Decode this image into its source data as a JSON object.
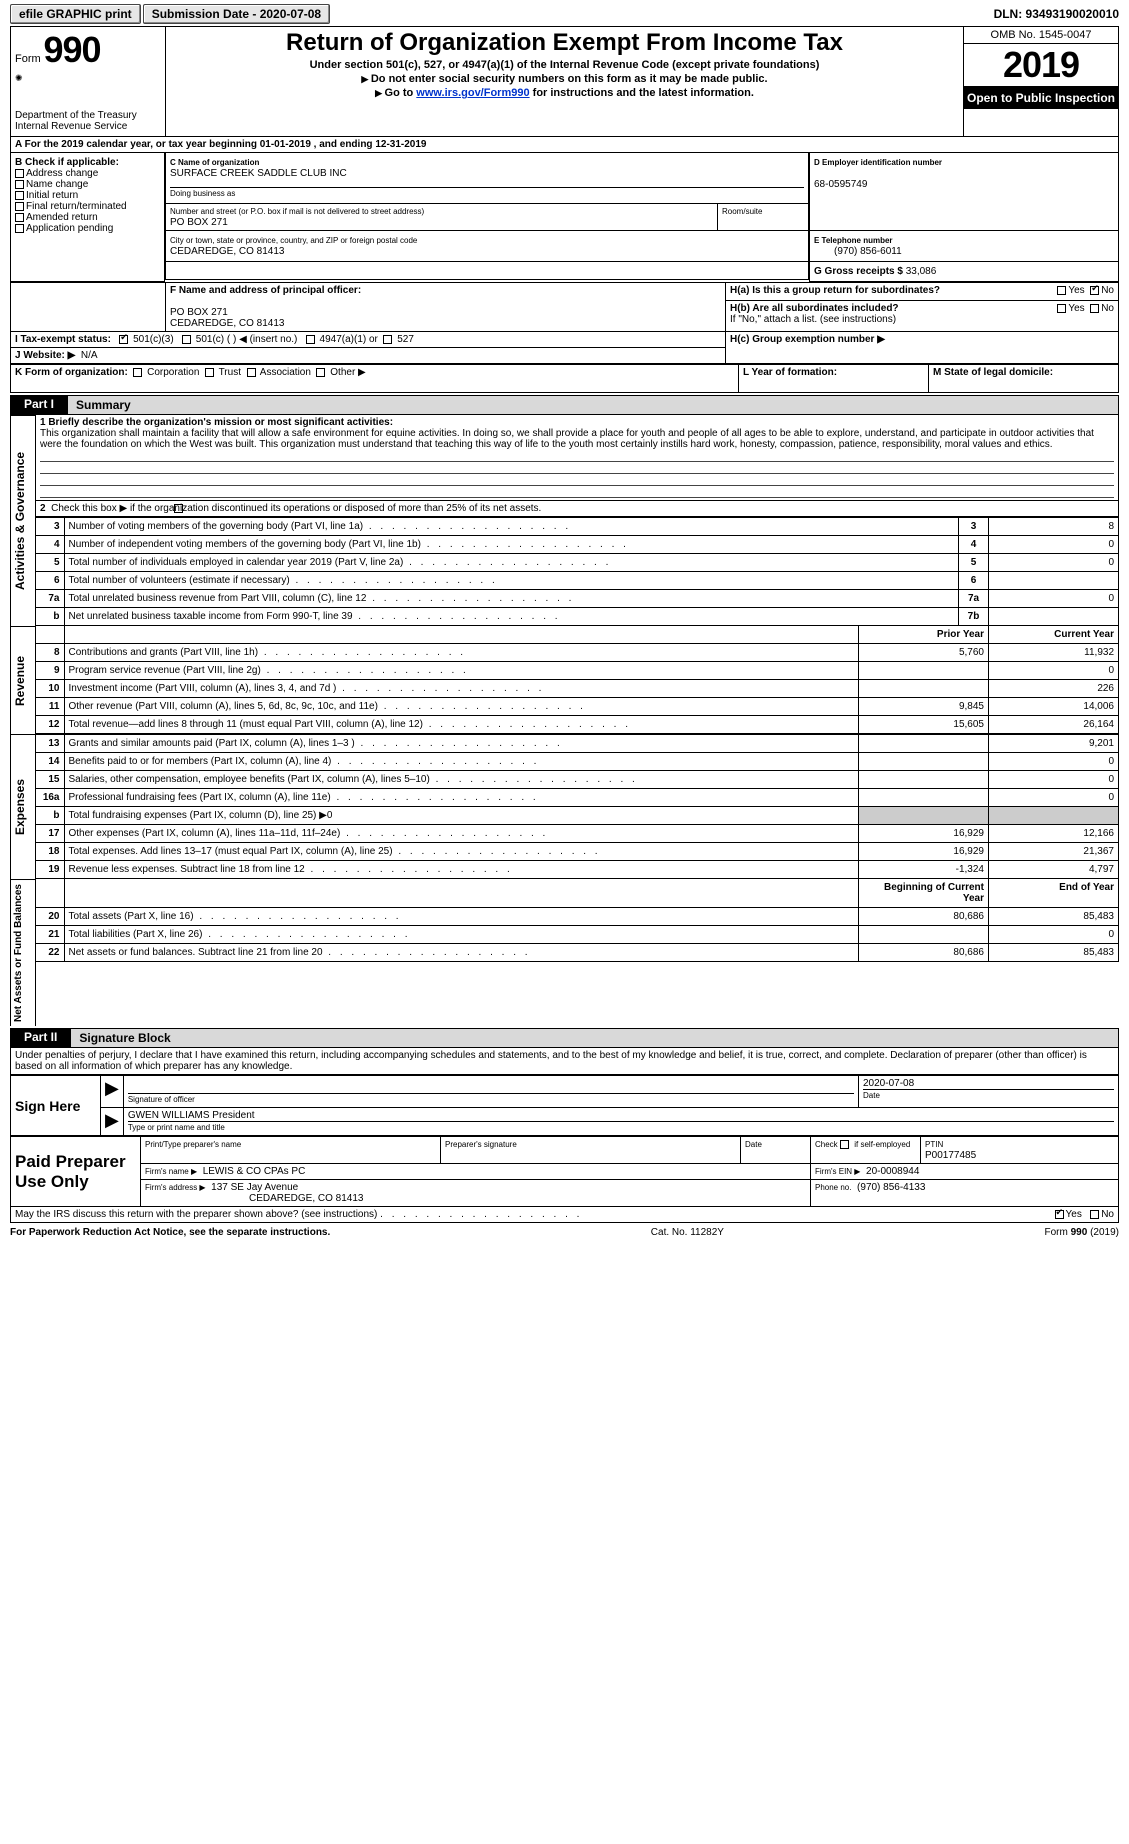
{
  "top": {
    "efile": "efile GRAPHIC print",
    "submission_label": "Submission Date - 2020-07-08",
    "dln_label": "DLN: 93493190020010"
  },
  "header": {
    "form_word": "Form",
    "form_num": "990",
    "dept1": "Department of the Treasury",
    "dept2": "Internal Revenue Service",
    "title": "Return of Organization Exempt From Income Tax",
    "sub1": "Under section 501(c), 527, or 4947(a)(1) of the Internal Revenue Code (except private foundations)",
    "sub2": "Do not enter social security numbers on this form as it may be made public.",
    "sub3_pre": "Go to ",
    "sub3_link": "www.irs.gov/Form990",
    "sub3_post": " for instructions and the latest information.",
    "omb": "OMB No. 1545-0047",
    "year": "2019",
    "open": "Open to Public Inspection"
  },
  "rowA": "A For the 2019 calendar year, or tax year beginning 01-01-2019    , and ending 12-31-2019",
  "boxB": {
    "label": "B Check if applicable:",
    "opts": [
      "Address change",
      "Name change",
      "Initial return",
      "Final return/terminated",
      "Amended return",
      "Application pending"
    ]
  },
  "boxC": {
    "name_lbl": "C Name of organization",
    "name": "SURFACE CREEK SADDLE CLUB INC",
    "dba_lbl": "Doing business as",
    "addr_lbl": "Number and street (or P.O. box if mail is not delivered to street address)",
    "room_lbl": "Room/suite",
    "addr": "PO BOX 271",
    "city_lbl": "City or town, state or province, country, and ZIP or foreign postal code",
    "city": "CEDAREDGE, CO  81413"
  },
  "boxD": {
    "lbl": "D Employer identification number",
    "val": "68-0595749"
  },
  "boxE": {
    "lbl": "E Telephone number",
    "val": "(970) 856-6011"
  },
  "boxG": {
    "lbl": "G Gross receipts $",
    "val": "33,086"
  },
  "boxF": {
    "lbl": "F  Name and address of principal officer:",
    "l1": "PO BOX 271",
    "l2": "CEDAREDGE, CO  81413"
  },
  "boxH": {
    "a": "H(a)  Is this a group return for subordinates?",
    "b": "H(b)  Are all subordinates included?",
    "note": "If \"No,\" attach a list. (see instructions)",
    "c": "H(c)  Group exemption number ▶",
    "yes": "Yes",
    "no": "No"
  },
  "rowI": {
    "lbl": "I   Tax-exempt status:",
    "o1": "501(c)(3)",
    "o2": "501(c) (  ) ◀ (insert no.)",
    "o3": "4947(a)(1) or",
    "o4": "527"
  },
  "rowJ": {
    "lbl": "J   Website: ▶",
    "val": "N/A"
  },
  "rowK": {
    "lbl": "K Form of organization:",
    "opts": [
      "Corporation",
      "Trust",
      "Association",
      "Other ▶"
    ]
  },
  "rowL": "L Year of formation:",
  "rowM": "M State of legal domicile:",
  "part1": {
    "tag": "Part I",
    "title": "Summary"
  },
  "part2": {
    "tag": "Part II",
    "title": "Signature Block"
  },
  "sec_act": {
    "label": "Activities & Governance",
    "l1_lbl": "1  Briefly describe the organization's mission or most significant activities:",
    "l1_txt": "This organization shall maintain a facility that will allow a safe environment for equine activities. In doing so, we shall provide a place for youth and people of all ages to be able to explore, understand, and participate in outdoor activities that were the foundation on which the West was built. This organization must understand that teaching this way of life to the youth most certainly instills hard work, honesty, compassion, patience, responsibility, moral values and ethics.",
    "l2": "Check this box ▶       if the organization discontinued its operations or disposed of more than 25% of its net assets.",
    "rows": [
      {
        "n": "3",
        "d": "Number of voting members of the governing body (Part VI, line 1a)",
        "c": "3",
        "v": "8"
      },
      {
        "n": "4",
        "d": "Number of independent voting members of the governing body (Part VI, line 1b)",
        "c": "4",
        "v": "0"
      },
      {
        "n": "5",
        "d": "Total number of individuals employed in calendar year 2019 (Part V, line 2a)",
        "c": "5",
        "v": "0"
      },
      {
        "n": "6",
        "d": "Total number of volunteers (estimate if necessary)",
        "c": "6",
        "v": ""
      },
      {
        "n": "7a",
        "d": "Total unrelated business revenue from Part VIII, column (C), line 12",
        "c": "7a",
        "v": "0"
      },
      {
        "n": "b",
        "d": "Net unrelated business taxable income from Form 990-T, line 39",
        "c": "7b",
        "v": ""
      }
    ]
  },
  "twocol_hdr": {
    "py": "Prior Year",
    "cy": "Current Year"
  },
  "sec_rev": {
    "label": "Revenue",
    "rows": [
      {
        "n": "8",
        "d": "Contributions and grants (Part VIII, line 1h)",
        "py": "5,760",
        "cy": "11,932"
      },
      {
        "n": "9",
        "d": "Program service revenue (Part VIII, line 2g)",
        "py": "",
        "cy": "0"
      },
      {
        "n": "10",
        "d": "Investment income (Part VIII, column (A), lines 3, 4, and 7d )",
        "py": "",
        "cy": "226"
      },
      {
        "n": "11",
        "d": "Other revenue (Part VIII, column (A), lines 5, 6d, 8c, 9c, 10c, and 11e)",
        "py": "9,845",
        "cy": "14,006"
      },
      {
        "n": "12",
        "d": "Total revenue—add lines 8 through 11 (must equal Part VIII, column (A), line 12)",
        "py": "15,605",
        "cy": "26,164"
      }
    ]
  },
  "sec_exp": {
    "label": "Expenses",
    "rows": [
      {
        "n": "13",
        "d": "Grants and similar amounts paid (Part IX, column (A), lines 1–3 )",
        "py": "",
        "cy": "9,201"
      },
      {
        "n": "14",
        "d": "Benefits paid to or for members (Part IX, column (A), line 4)",
        "py": "",
        "cy": "0"
      },
      {
        "n": "15",
        "d": "Salaries, other compensation, employee benefits (Part IX, column (A), lines 5–10)",
        "py": "",
        "cy": "0"
      },
      {
        "n": "16a",
        "d": "Professional fundraising fees (Part IX, column (A), line 11e)",
        "py": "",
        "cy": "0"
      },
      {
        "n": "b",
        "d": "Total fundraising expenses (Part IX, column (D), line 25) ▶0",
        "py": "—",
        "cy": "—"
      },
      {
        "n": "17",
        "d": "Other expenses (Part IX, column (A), lines 11a–11d, 11f–24e)",
        "py": "16,929",
        "cy": "12,166"
      },
      {
        "n": "18",
        "d": "Total expenses. Add lines 13–17 (must equal Part IX, column (A), line 25)",
        "py": "16,929",
        "cy": "21,367"
      },
      {
        "n": "19",
        "d": "Revenue less expenses. Subtract line 18 from line 12",
        "py": "-1,324",
        "cy": "4,797"
      }
    ]
  },
  "twocol_hdr2": {
    "py": "Beginning of Current Year",
    "cy": "End of Year"
  },
  "sec_net": {
    "label": "Net Assets or Fund Balances",
    "rows": [
      {
        "n": "20",
        "d": "Total assets (Part X, line 16)",
        "py": "80,686",
        "cy": "85,483"
      },
      {
        "n": "21",
        "d": "Total liabilities (Part X, line 26)",
        "py": "",
        "cy": "0"
      },
      {
        "n": "22",
        "d": "Net assets or fund balances. Subtract line 21 from line 20",
        "py": "80,686",
        "cy": "85,483"
      }
    ]
  },
  "sig": {
    "decl": "Under penalties of perjury, I declare that I have examined this return, including accompanying schedules and statements, and to the best of my knowledge and belief, it is true, correct, and complete. Declaration of preparer (other than officer) is based on all information of which preparer has any knowledge.",
    "sign_here": "Sign Here",
    "sig_of_officer": "Signature of officer",
    "date": "Date",
    "sig_date": "2020-07-08",
    "name": "GWEN WILLIAMS  President",
    "name_lbl": "Type or print name and title"
  },
  "prep": {
    "label": "Paid Preparer Use Only",
    "c1": "Print/Type preparer's name",
    "c2": "Preparer's signature",
    "c3": "Date",
    "c4a": "Check",
    "c4b": "if self-employed",
    "c5": "PTIN",
    "ptin": "P00177485",
    "firm_name_lbl": "Firm's name    ▶",
    "firm_name": "LEWIS & CO CPAs PC",
    "firm_ein_lbl": "Firm's EIN ▶",
    "firm_ein": "20-0008944",
    "firm_addr_lbl": "Firm's address ▶",
    "firm_addr1": "137 SE Jay Avenue",
    "firm_addr2": "CEDAREDGE, CO  81413",
    "phone_lbl": "Phone no.",
    "phone": "(970) 856-4133"
  },
  "may": {
    "q": "May the IRS discuss this return with the preparer shown above? (see instructions)",
    "yes": "Yes",
    "no": "No"
  },
  "foot": {
    "l": "For Paperwork Reduction Act Notice, see the separate instructions.",
    "m": "Cat. No. 11282Y",
    "r1": "Form ",
    "r2": "990",
    "r3": " (2019)"
  }
}
